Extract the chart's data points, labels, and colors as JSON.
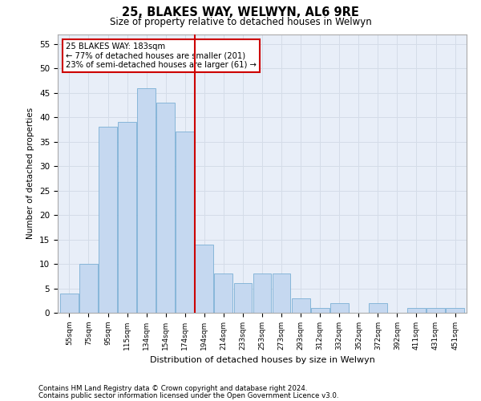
{
  "title": "25, BLAKES WAY, WELWYN, AL6 9RE",
  "subtitle": "Size of property relative to detached houses in Welwyn",
  "xlabel": "Distribution of detached houses by size in Welwyn",
  "ylabel": "Number of detached properties",
  "categories": [
    "55sqm",
    "75sqm",
    "95sqm",
    "115sqm",
    "134sqm",
    "154sqm",
    "174sqm",
    "194sqm",
    "214sqm",
    "233sqm",
    "253sqm",
    "273sqm",
    "293sqm",
    "312sqm",
    "332sqm",
    "352sqm",
    "372sqm",
    "392sqm",
    "411sqm",
    "431sqm",
    "451sqm"
  ],
  "values": [
    4,
    10,
    38,
    39,
    46,
    43,
    37,
    14,
    8,
    6,
    8,
    8,
    3,
    1,
    2,
    0,
    2,
    0,
    1,
    1,
    1
  ],
  "bar_color": "#c5d8f0",
  "bar_edge_color": "#7bafd4",
  "red_line_color": "#cc0000",
  "annotation_line1": "25 BLAKES WAY: 183sqm",
  "annotation_line2": "← 77% of detached houses are smaller (201)",
  "annotation_line3": "23% of semi-detached houses are larger (61) →",
  "annotation_box_color": "#ffffff",
  "annotation_box_edge": "#cc0000",
  "grid_color": "#d4dce8",
  "background_color": "#e8eef8",
  "ylim": [
    0,
    57
  ],
  "yticks": [
    0,
    5,
    10,
    15,
    20,
    25,
    30,
    35,
    40,
    45,
    50,
    55
  ],
  "footnote1": "Contains HM Land Registry data © Crown copyright and database right 2024.",
  "footnote2": "Contains public sector information licensed under the Open Government Licence v3.0."
}
